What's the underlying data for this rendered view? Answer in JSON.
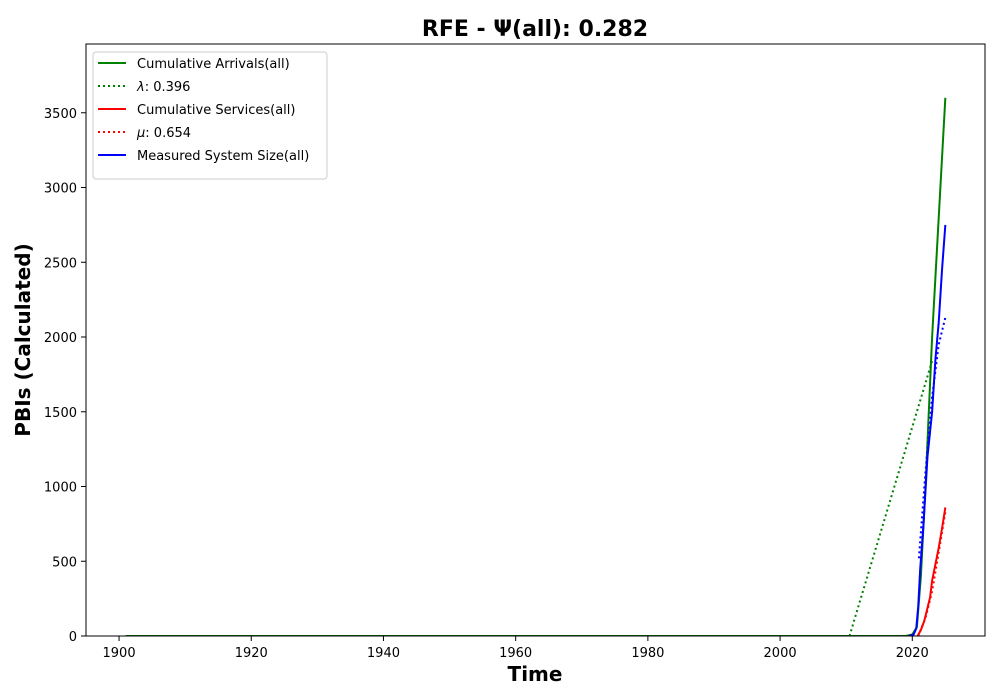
{
  "chart_data": {
    "type": "line",
    "title": "RFE -  Ψ(all): 0.282",
    "xlabel": "Time",
    "ylabel": "PBIs (Calculated)",
    "xlim": [
      1895,
      2031
    ],
    "ylim": [
      0,
      3960
    ],
    "xticks": [
      1900,
      1920,
      1940,
      1960,
      1980,
      2000,
      2020
    ],
    "yticks": [
      0,
      500,
      1000,
      1500,
      2000,
      2500,
      3000,
      3500
    ],
    "legend_position": "upper left",
    "grid": false,
    "series": [
      {
        "name": "Cumulative Arrivals(all)",
        "color": "#008000",
        "style": "solid",
        "x": [
          1901,
          2019,
          2020,
          2020.7,
          2021.3,
          2022,
          2022.5,
          2023,
          2023.5,
          2024,
          2024.5,
          2025
        ],
        "y": [
          0,
          0,
          10,
          60,
          400,
          1000,
          1500,
          2000,
          2400,
          2800,
          3200,
          3600
        ]
      },
      {
        "name": "λ: 0.396",
        "label_html": "<tspan font-style='italic'>λ</tspan>: 0.396",
        "color": "#008000",
        "style": "dotted",
        "x": [
          2010.5,
          2023
        ],
        "y": [
          0,
          1840
        ]
      },
      {
        "name": "Cumulative Services(all)",
        "color": "#ff0000",
        "style": "solid",
        "x": [
          2020.8,
          2021.3,
          2021.8,
          2022.2,
          2022.7,
          2023,
          2023.5,
          2024,
          2024.5,
          2025
        ],
        "y": [
          0,
          40,
          100,
          170,
          260,
          370,
          480,
          590,
          720,
          860
        ]
      },
      {
        "name": "μ: 0.654",
        "label_html": "<tspan font-style='italic'>μ</tspan>: 0.654",
        "color": "#ff0000",
        "style": "dotted",
        "x": [
          2020.9,
          2022,
          2023,
          2024,
          2025
        ],
        "y": [
          0,
          120,
          300,
          560,
          830
        ]
      },
      {
        "name": "Measured System Size(all)",
        "color": "#0000ff",
        "style": "solid",
        "x": [
          2019.5,
          2020.2,
          2020.6,
          2020.9,
          2021.2,
          2021.7,
          2022.3,
          2023,
          2023.5,
          2024,
          2024.5,
          2025
        ],
        "y": [
          0,
          10,
          50,
          200,
          450,
          750,
          1200,
          1500,
          1850,
          2100,
          2450,
          2750
        ]
      },
      {
        "name": "",
        "color": "#0000ff",
        "style": "dotted",
        "show_in_legend": false,
        "x": [
          2021,
          2022,
          2023,
          2024,
          2025
        ],
        "y": [
          520,
          1100,
          1600,
          1950,
          2130
        ]
      }
    ]
  }
}
